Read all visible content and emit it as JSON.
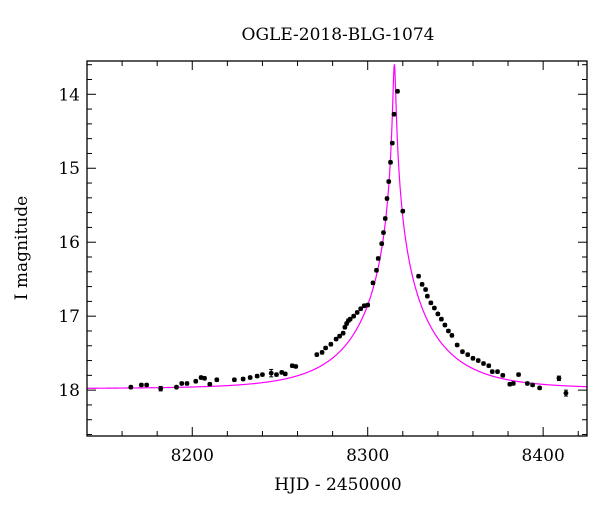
{
  "chart_data": {
    "type": "scatter",
    "title": "OGLE-2018-BLG-1074",
    "xlabel": "HJD - 2450000",
    "ylabel": "I magnitude",
    "xlim": [
      8140,
      8425
    ],
    "ylim": [
      18.62,
      13.55
    ],
    "y_inverted": true,
    "x_ticks": [
      8200,
      8300,
      8400
    ],
    "y_ticks": [
      14,
      15,
      16,
      17,
      18
    ],
    "grid": false,
    "colors": {
      "points": "#000000",
      "model": "#ff00ff",
      "axes": "#000000"
    },
    "series": [
      {
        "type": "scatter",
        "x": [
          8165,
          8171,
          8174,
          8182,
          8191,
          8194,
          8197,
          8202,
          8205,
          8207,
          8210,
          8214,
          8224,
          8229,
          8233,
          8237,
          8240,
          8245,
          8248,
          8251,
          8253,
          8257,
          8259,
          8271,
          8274,
          8276,
          8279,
          8282,
          8284,
          8286,
          8287,
          8288,
          8289,
          8290,
          8292,
          8294,
          8296,
          8298,
          8300,
          8303,
          8305,
          8306,
          8308,
          8309,
          8310,
          8311,
          8312,
          8313,
          8314,
          8315,
          8317,
          8320,
          8329,
          8331,
          8333,
          8334,
          8336,
          8338,
          8340,
          8342,
          8344,
          8346,
          8348,
          8351,
          8354,
          8357,
          8360,
          8363,
          8366,
          8369,
          8371,
          8374,
          8377,
          8381,
          8383,
          8386,
          8391,
          8394,
          8398,
          8409,
          8413
        ],
        "y": [
          17.96,
          17.93,
          17.93,
          17.98,
          17.96,
          17.91,
          17.91,
          17.88,
          17.83,
          17.84,
          17.92,
          17.86,
          17.86,
          17.85,
          17.83,
          17.81,
          17.79,
          17.77,
          17.79,
          17.76,
          17.78,
          17.67,
          17.68,
          17.52,
          17.49,
          17.43,
          17.38,
          17.31,
          17.27,
          17.23,
          17.15,
          17.1,
          17.06,
          17.04,
          17.0,
          16.95,
          16.9,
          16.86,
          16.85,
          16.55,
          16.38,
          16.22,
          16.02,
          15.87,
          15.68,
          15.41,
          15.18,
          14.92,
          14.66,
          14.27,
          13.96,
          15.58,
          16.46,
          16.57,
          16.64,
          16.73,
          16.82,
          16.89,
          16.97,
          17.04,
          17.12,
          17.2,
          17.26,
          17.39,
          17.48,
          17.52,
          17.57,
          17.6,
          17.64,
          17.67,
          17.75,
          17.75,
          17.8,
          17.92,
          17.91,
          17.79,
          17.91,
          17.93,
          17.97,
          17.84,
          18.04
        ],
        "error": [
          0.02,
          0.02,
          0.02,
          0.03,
          0.02,
          0.02,
          0.02,
          0.02,
          0.02,
          0.02,
          0.02,
          0.02,
          0.02,
          0.02,
          0.02,
          0.02,
          0.02,
          0.05,
          0.02,
          0.02,
          0.02,
          0.02,
          0.02,
          0.02,
          0.02,
          0.02,
          0.02,
          0.02,
          0.02,
          0.02,
          0.02,
          0.02,
          0.02,
          0.02,
          0.02,
          0.02,
          0.02,
          0.02,
          0.02,
          0.02,
          0.02,
          0.02,
          0.02,
          0.02,
          0.02,
          0.02,
          0.02,
          0.02,
          0.02,
          0.02,
          0.02,
          0.02,
          0.02,
          0.02,
          0.02,
          0.02,
          0.02,
          0.02,
          0.02,
          0.02,
          0.02,
          0.02,
          0.02,
          0.02,
          0.02,
          0.02,
          0.02,
          0.02,
          0.02,
          0.02,
          0.02,
          0.02,
          0.02,
          0.02,
          0.02,
          0.02,
          0.02,
          0.02,
          0.02,
          0.03,
          0.04
        ]
      },
      {
        "type": "line",
        "model": "single-lens",
        "t0": 8315.2,
        "tE": 41.0,
        "u0": 0.0175,
        "I_base": 17.98
      }
    ]
  }
}
